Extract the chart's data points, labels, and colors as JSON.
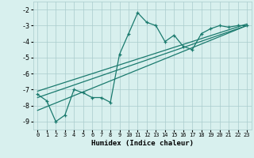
{
  "xlabel": "Humidex (Indice chaleur)",
  "xlim": [
    -0.5,
    23.5
  ],
  "ylim": [
    -9.5,
    -1.5
  ],
  "yticks": [
    -9,
    -8,
    -7,
    -6,
    -5,
    -4,
    -3,
    -2
  ],
  "xticks": [
    0,
    1,
    2,
    3,
    4,
    5,
    6,
    7,
    8,
    9,
    10,
    11,
    12,
    13,
    14,
    15,
    16,
    17,
    18,
    19,
    20,
    21,
    22,
    23
  ],
  "main_x": [
    0,
    1,
    2,
    3,
    4,
    5,
    6,
    7,
    8,
    9,
    10,
    11,
    12,
    13,
    14,
    15,
    16,
    17,
    18,
    19,
    20,
    21,
    22,
    23
  ],
  "main_y": [
    -7.3,
    -7.7,
    -9.0,
    -8.6,
    -7.0,
    -7.2,
    -7.5,
    -7.5,
    -7.8,
    -4.8,
    -3.5,
    -2.2,
    -2.8,
    -3.0,
    -4.0,
    -3.6,
    -4.3,
    -4.5,
    -3.5,
    -3.2,
    -3.0,
    -3.1,
    -3.0,
    -3.0
  ],
  "line1_x": [
    0,
    23
  ],
  "line1_y": [
    -7.5,
    -3.0
  ],
  "line2_x": [
    0,
    23
  ],
  "line2_y": [
    -8.3,
    -3.0
  ],
  "line3_x": [
    0,
    23
  ],
  "line3_y": [
    -7.1,
    -2.9
  ],
  "color": "#1a7a6e",
  "bg_color": "#d8f0ee",
  "grid_color": "#aacccc",
  "linewidth": 0.9,
  "markersize": 3
}
